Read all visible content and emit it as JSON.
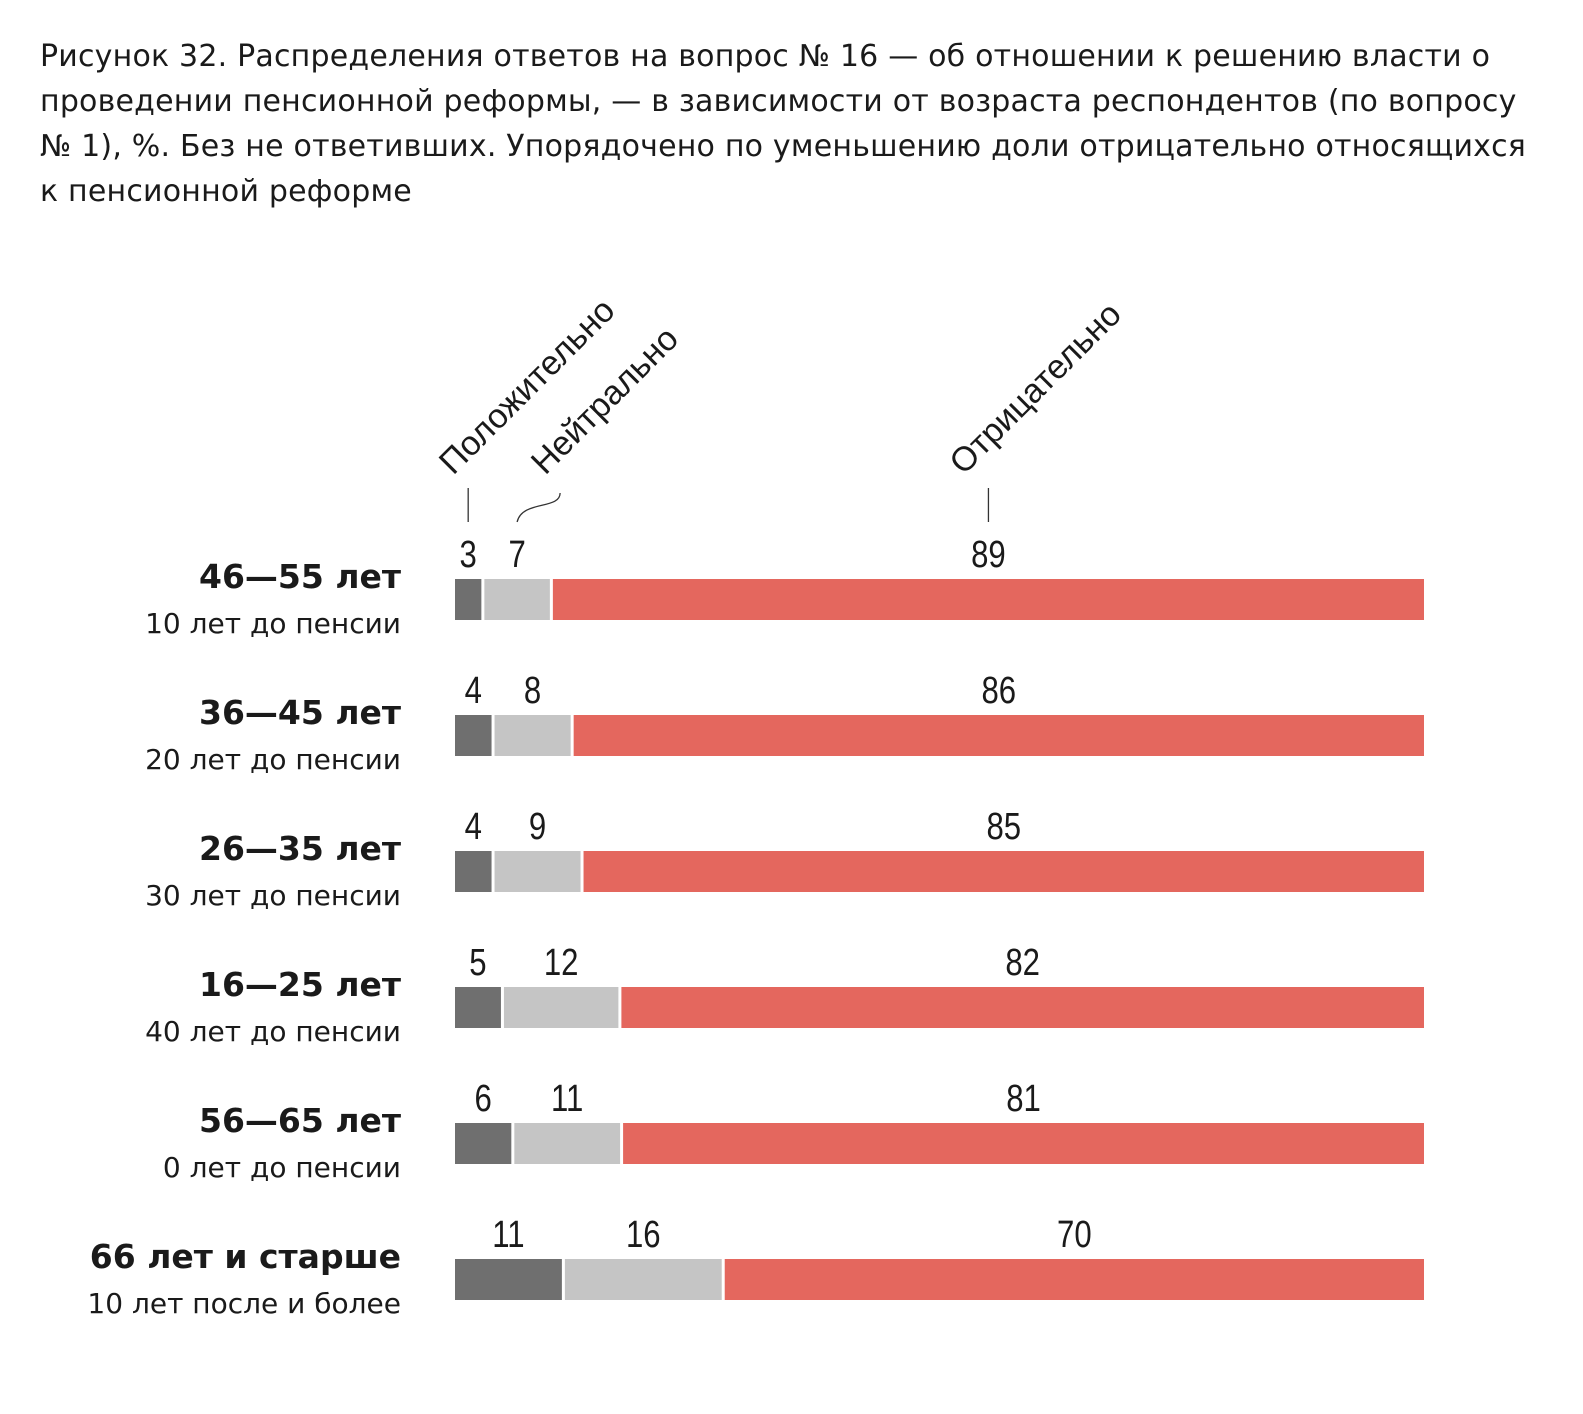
{
  "chart_data": {
    "type": "bar",
    "orientation": "horizontal",
    "stacked": true,
    "title": "Рисунок 32. Распределения ответов на вопрос № 16 — об отношении к решению власти о проведении пенсионной реформы, — в зависимости от возраста респондентов (по вопросу № 1), %. Без не ответивших. Упорядочено по уменьшению доли отрицательно относящихся к пенсионной реформе",
    "categories": [
      "46—55 лет",
      "36—45 лет",
      "26—35 лет",
      "16—25 лет",
      "56—65 лет",
      "66 лет и старше"
    ],
    "subcategories": [
      "10 лет до пенсии",
      "20 лет до пенсии",
      "30 лет до пенсии",
      "40 лет до пенсии",
      "0 лет до пенсии",
      "10 лет после и более"
    ],
    "series": [
      {
        "name": "Положительно",
        "color": "#6f6f6f",
        "values": [
          3,
          4,
          4,
          5,
          6,
          11
        ]
      },
      {
        "name": "Нейтрально",
        "color": "#c5c5c5",
        "values": [
          7,
          8,
          9,
          12,
          11,
          16
        ]
      },
      {
        "name": "Отрицательно",
        "color": "#e4675e",
        "values": [
          89,
          86,
          85,
          82,
          81,
          70
        ]
      }
    ],
    "legend": "rotated labels above first bar",
    "grid": false
  }
}
